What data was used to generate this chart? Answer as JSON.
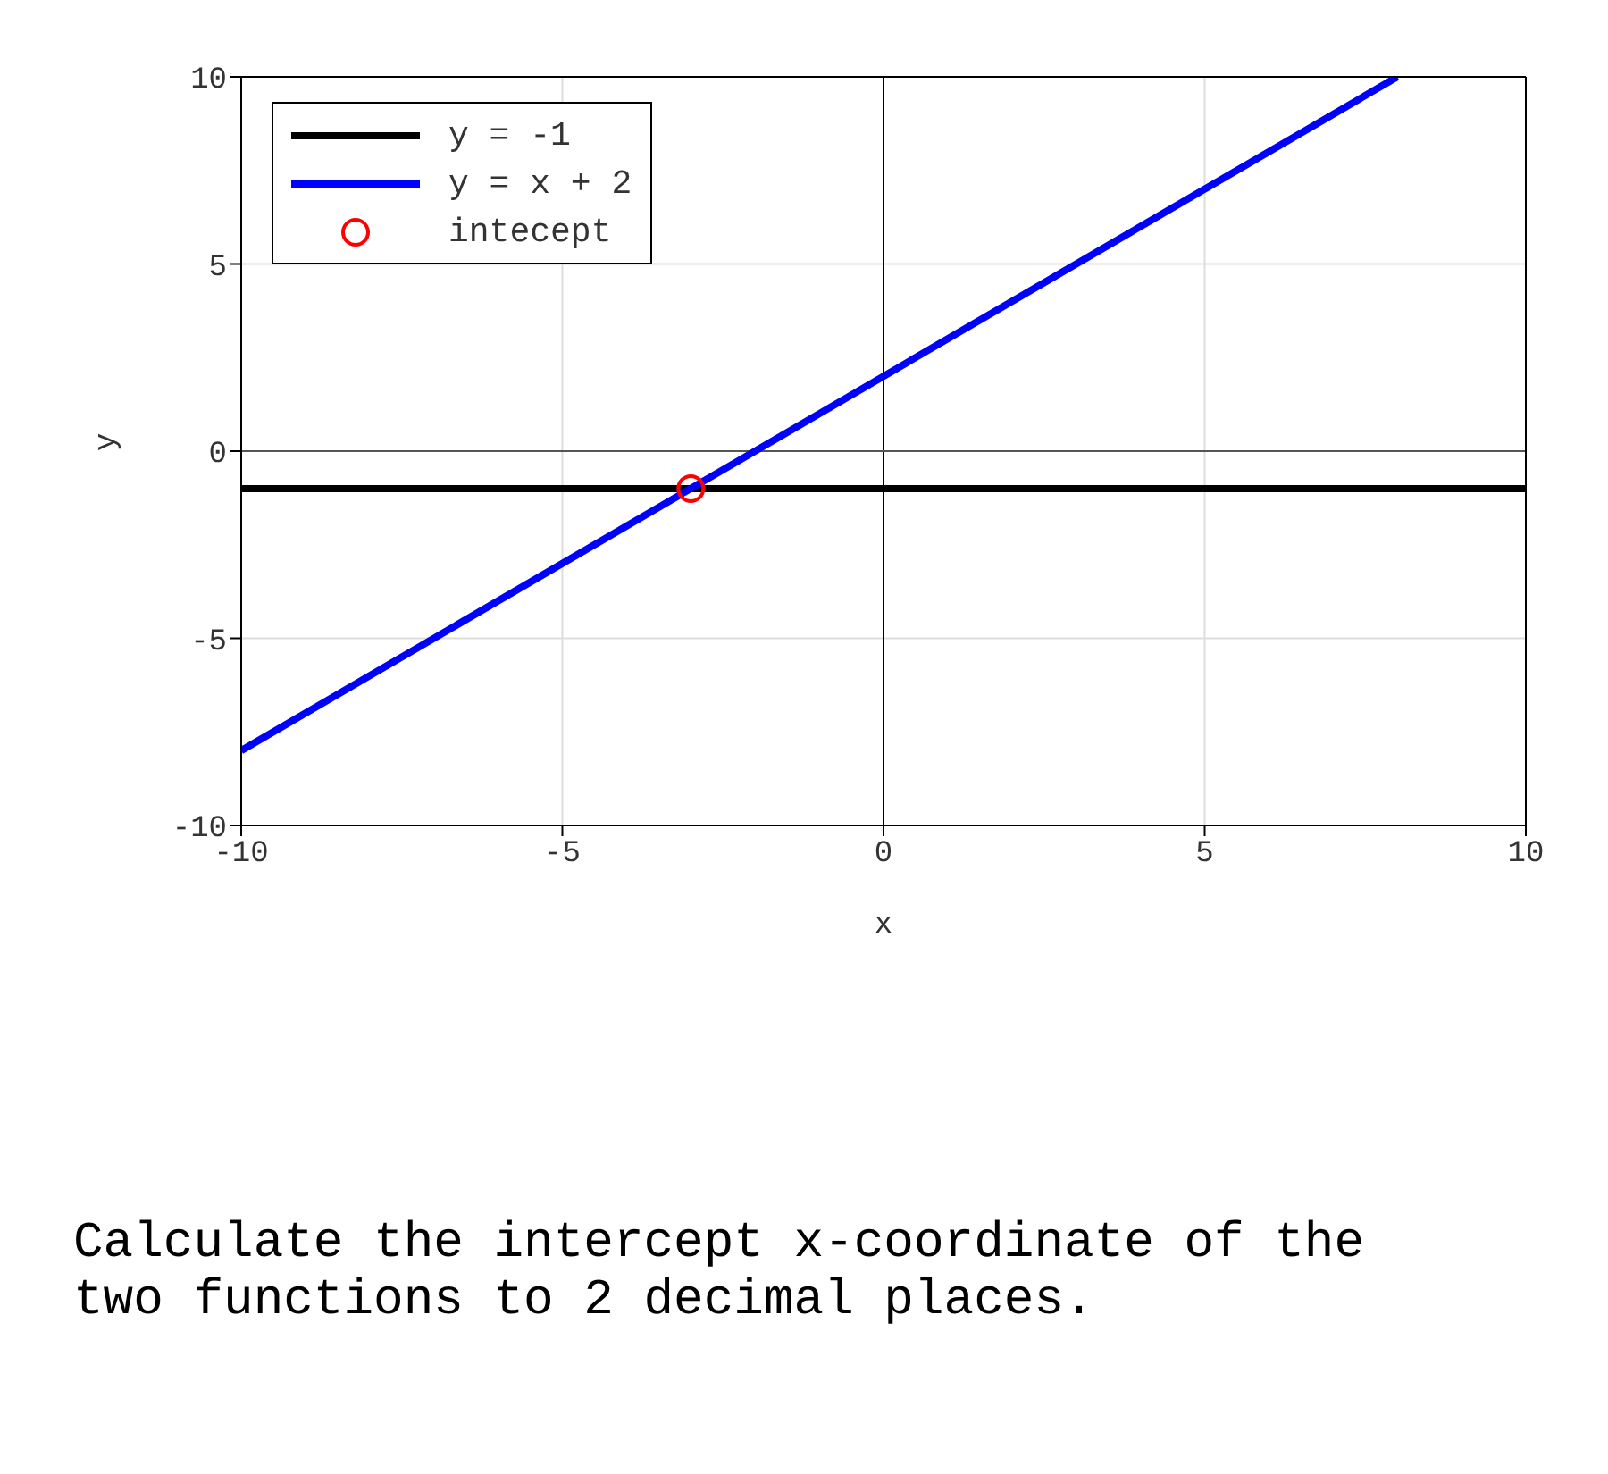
{
  "chart_data": {
    "type": "line",
    "xlabel": "x",
    "ylabel": "y",
    "xlim": [
      -10,
      10
    ],
    "ylim": [
      -10,
      10
    ],
    "xticks": [
      -10,
      -5,
      0,
      5,
      10
    ],
    "yticks": [
      -10,
      -5,
      0,
      5,
      10
    ],
    "grid": true,
    "legend": "top left",
    "ref_lines": [
      {
        "axis": "x",
        "value": 0,
        "color": "#000000"
      },
      {
        "axis": "y",
        "value": 0,
        "color": "#555555"
      }
    ],
    "series": [
      {
        "name": "y = -1",
        "color": "#000000",
        "x": [
          -10,
          10
        ],
        "values": [
          -1,
          -1
        ],
        "marker": "none"
      },
      {
        "name": "y = x + 2",
        "color": "#0000ff",
        "x": [
          -10,
          8
        ],
        "values": [
          -8,
          10
        ],
        "marker": "none"
      },
      {
        "name": "intecept",
        "type": "scatter",
        "color": "#ff0000",
        "x": [
          -3
        ],
        "values": [
          -1
        ],
        "marker": "circle"
      }
    ],
    "annotations": [
      "Calculate the intercept x-coordinate of the two functions to 2 decimal places."
    ]
  }
}
